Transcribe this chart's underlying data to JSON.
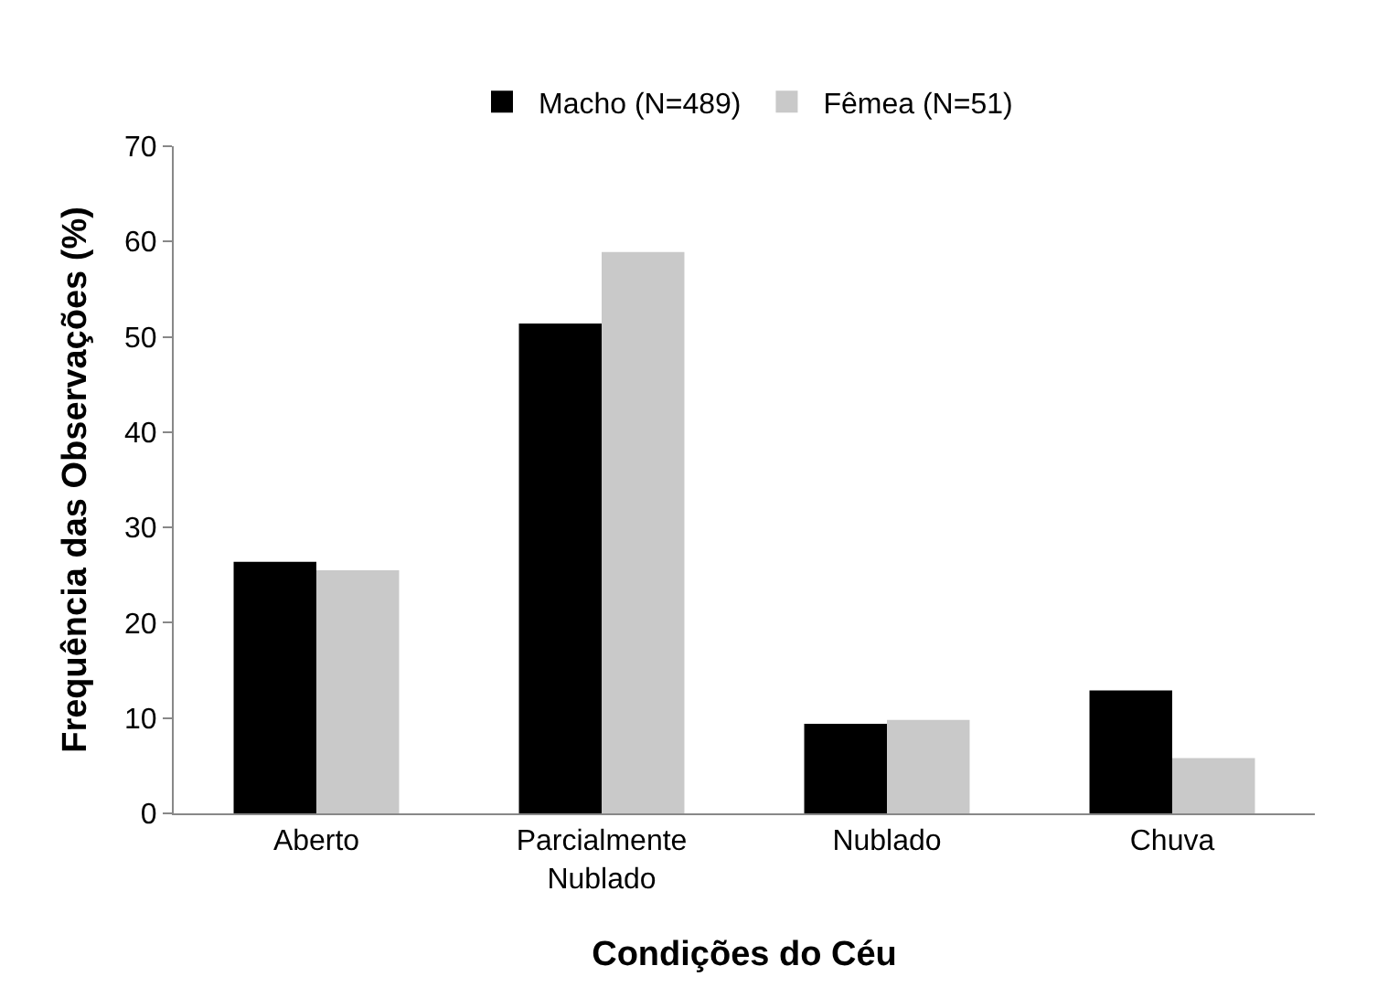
{
  "chart_data": {
    "type": "bar",
    "xlabel": "Condições do Céu",
    "ylabel": "Frequência das Observações (%)",
    "categories": [
      "Aberto",
      "Parcialmente\nNublado",
      "Nublado",
      "Chuva"
    ],
    "series": [
      {
        "name": "Macho (N=489)",
        "color": "#000000",
        "values": [
          26.4,
          51.4,
          9.4,
          12.9
        ]
      },
      {
        "name": "Fêmea (N=51)",
        "color": "#c9c9c9",
        "values": [
          25.5,
          58.9,
          9.8,
          5.8
        ]
      }
    ],
    "ylim": [
      0,
      70
    ],
    "yticks": [
      0,
      10,
      20,
      30,
      40,
      50,
      60,
      70
    ],
    "legend": "top"
  }
}
